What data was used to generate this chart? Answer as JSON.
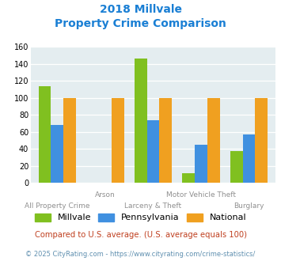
{
  "title_line1": "2018 Millvale",
  "title_line2": "Property Crime Comparison",
  "categories": [
    "All Property Crime",
    "Arson",
    "Larceny & Theft",
    "Motor Vehicle Theft",
    "Burglary"
  ],
  "millvale": [
    114,
    0,
    146,
    11,
    37
  ],
  "pennsylvania": [
    68,
    0,
    74,
    45,
    57
  ],
  "national": [
    100,
    100,
    100,
    100,
    100
  ],
  "color_millvale": "#80c020",
  "color_pennsylvania": "#4090e0",
  "color_national": "#f0a020",
  "background_color": "#e4edf0",
  "ylim": [
    0,
    160
  ],
  "yticks": [
    0,
    20,
    40,
    60,
    80,
    100,
    120,
    140,
    160
  ],
  "footnote1": "Compared to U.S. average. (U.S. average equals 100)",
  "footnote2": "© 2025 CityRating.com - https://www.cityrating.com/crime-statistics/",
  "title_color": "#1a7fd4",
  "footnote1_color": "#c04020",
  "footnote2_color": "#6090b0"
}
